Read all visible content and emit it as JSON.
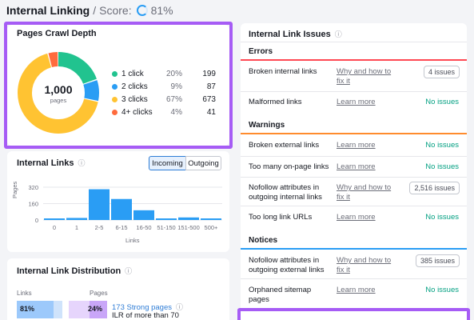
{
  "header": {
    "title": "Internal Linking",
    "slash": "/",
    "score_label": "Score:",
    "score_value": "81%"
  },
  "crawl_depth": {
    "title": "Pages Crawl Depth",
    "center_value": "1,000",
    "center_label": "pages",
    "legend": [
      {
        "label": "1 click",
        "pct": "20%",
        "count": "199",
        "color": "#21c38f"
      },
      {
        "label": "2 clicks",
        "pct": "9%",
        "count": "87",
        "color": "#2a9df4"
      },
      {
        "label": "3 clicks",
        "pct": "67%",
        "count": "673",
        "color": "#ffc332"
      },
      {
        "label": "4+ clicks",
        "pct": "4%",
        "count": "41",
        "color": "#ff6b3d"
      }
    ]
  },
  "internal_links": {
    "title": "Internal Links",
    "tabs": [
      "Incoming",
      "Outgoing"
    ],
    "active_tab": "Incoming"
  },
  "chart_data": {
    "type": "bar",
    "categories": [
      "0",
      "1",
      "2-5",
      "6-15",
      "16-50",
      "51-150",
      "151-500",
      "500+"
    ],
    "values": [
      5,
      20,
      300,
      205,
      95,
      15,
      25,
      5
    ],
    "ylabel": "Pages",
    "xlabel": "Links",
    "yticks": [
      "320",
      "160",
      "0"
    ],
    "ylim": [
      0,
      320
    ],
    "color": "#2a9df4"
  },
  "distribution": {
    "title": "Internal Link Distribution",
    "links_label": "Links",
    "pages_label": "Pages",
    "links_pct": "81%",
    "arrow": "→",
    "pages_pct": "24%",
    "strong_pages": "173 Strong pages",
    "ilr_text": "ILR of more than 70"
  },
  "issues": {
    "title": "Internal Link Issues",
    "sections": {
      "errors": "Errors",
      "warnings": "Warnings",
      "notices": "Notices"
    },
    "rows": [
      {
        "name": "Broken internal links",
        "link": "Why and how to fix it",
        "status": "4 issues",
        "type": "badge"
      },
      {
        "name": "Malformed links",
        "link": "Learn more",
        "status": "No issues",
        "type": "ok"
      },
      {
        "name": "Broken external links",
        "link": "Learn more",
        "status": "No issues",
        "type": "ok"
      },
      {
        "name": "Too many on-page links",
        "link": "Learn more",
        "status": "No issues",
        "type": "ok"
      },
      {
        "name": "Nofollow attributes in outgoing internal links",
        "link": "Why and how to fix it",
        "status": "2,516 issues",
        "type": "badge"
      },
      {
        "name": "Too long link URLs",
        "link": "Learn more",
        "status": "No issues",
        "type": "ok"
      },
      {
        "name": "Nofollow attributes in outgoing external links",
        "link": "Why and how to fix it",
        "status": "385 issues",
        "type": "badge"
      },
      {
        "name": "Orphaned sitemap pages",
        "link": "Learn more",
        "status": "No issues",
        "type": "ok"
      }
    ]
  }
}
